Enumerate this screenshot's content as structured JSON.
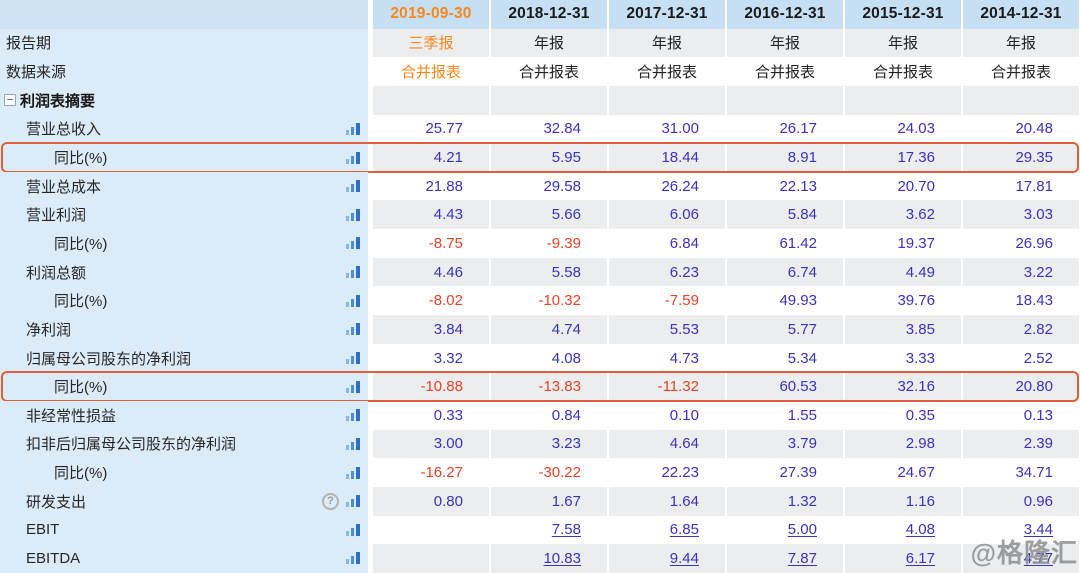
{
  "columns": [
    "2019-09-30",
    "2018-12-31",
    "2017-12-31",
    "2016-12-31",
    "2015-12-31",
    "2014-12-31"
  ],
  "rows": [
    {
      "type": "meta",
      "label": "报告期",
      "values": [
        "三季报",
        "年报",
        "年报",
        "年报",
        "年报",
        "年报"
      ]
    },
    {
      "type": "meta",
      "label": "数据来源",
      "values": [
        "合并报表",
        "合并报表",
        "合并报表",
        "合并报表",
        "合并报表",
        "合并报表"
      ]
    },
    {
      "type": "section",
      "label": "利润表摘要",
      "values": [
        "",
        "",
        "",
        "",
        "",
        ""
      ]
    },
    {
      "type": "data",
      "label": "营业总收入",
      "indent": 1,
      "values": [
        "25.77",
        "32.84",
        "31.00",
        "26.17",
        "24.03",
        "20.48"
      ]
    },
    {
      "type": "data",
      "label": "同比(%)",
      "indent": 2,
      "highlight": true,
      "values": [
        "4.21",
        "5.95",
        "18.44",
        "8.91",
        "17.36",
        "29.35"
      ]
    },
    {
      "type": "data",
      "label": "营业总成本",
      "indent": 1,
      "values": [
        "21.88",
        "29.58",
        "26.24",
        "22.13",
        "20.70",
        "17.81"
      ]
    },
    {
      "type": "data",
      "label": "营业利润",
      "indent": 1,
      "values": [
        "4.43",
        "5.66",
        "6.06",
        "5.84",
        "3.62",
        "3.03"
      ]
    },
    {
      "type": "data",
      "label": "同比(%)",
      "indent": 2,
      "values": [
        "-8.75",
        "-9.39",
        "6.84",
        "61.42",
        "19.37",
        "26.96"
      ]
    },
    {
      "type": "data",
      "label": "利润总额",
      "indent": 1,
      "values": [
        "4.46",
        "5.58",
        "6.23",
        "6.74",
        "4.49",
        "3.22"
      ]
    },
    {
      "type": "data",
      "label": "同比(%)",
      "indent": 2,
      "values": [
        "-8.02",
        "-10.32",
        "-7.59",
        "49.93",
        "39.76",
        "18.43"
      ]
    },
    {
      "type": "data",
      "label": "净利润",
      "indent": 1,
      "values": [
        "3.84",
        "4.74",
        "5.53",
        "5.77",
        "3.85",
        "2.82"
      ]
    },
    {
      "type": "data",
      "label": "归属母公司股东的净利润",
      "indent": 1,
      "values": [
        "3.32",
        "4.08",
        "4.73",
        "5.34",
        "3.33",
        "2.52"
      ]
    },
    {
      "type": "data",
      "label": "同比(%)",
      "indent": 2,
      "highlight": true,
      "values": [
        "-10.88",
        "-13.83",
        "-11.32",
        "60.53",
        "32.16",
        "20.80"
      ]
    },
    {
      "type": "data",
      "label": "非经常性损益",
      "indent": 1,
      "values": [
        "0.33",
        "0.84",
        "0.10",
        "1.55",
        "0.35",
        "0.13"
      ]
    },
    {
      "type": "data",
      "label": "扣非后归属母公司股东的净利润",
      "indent": 1,
      "values": [
        "3.00",
        "3.23",
        "4.64",
        "3.79",
        "2.98",
        "2.39"
      ]
    },
    {
      "type": "data",
      "label": "同比(%)",
      "indent": 2,
      "values": [
        "-16.27",
        "-30.22",
        "22.23",
        "27.39",
        "24.67",
        "34.71"
      ]
    },
    {
      "type": "data",
      "label": "研发支出",
      "indent": 1,
      "help": true,
      "values": [
        "0.80",
        "1.67",
        "1.64",
        "1.32",
        "1.16",
        "0.96"
      ]
    },
    {
      "type": "data",
      "label": "EBIT",
      "indent": 1,
      "underline": true,
      "values": [
        "",
        "7.58",
        "6.85",
        "5.00",
        "4.08",
        "3.44"
      ]
    },
    {
      "type": "data",
      "label": "EBITDA",
      "indent": 1,
      "underline": true,
      "values": [
        "",
        "10.83",
        "9.44",
        "7.87",
        "6.17",
        "4.77"
      ]
    }
  ],
  "icons": {
    "collapse": "−",
    "help": "?",
    "bar_chart": "bar-chart"
  },
  "watermark": "@格隆汇",
  "colors": {
    "accent_orange": "#f6871f",
    "value_blue": "#3b33bb",
    "value_negative": "#e3442a",
    "highlight_border": "#dd603d",
    "header_bg": "#c7dff3",
    "corner_bg": "#cfe3f4",
    "label_bg": "#dcebf8",
    "stripe_bg": "#ebedee"
  }
}
